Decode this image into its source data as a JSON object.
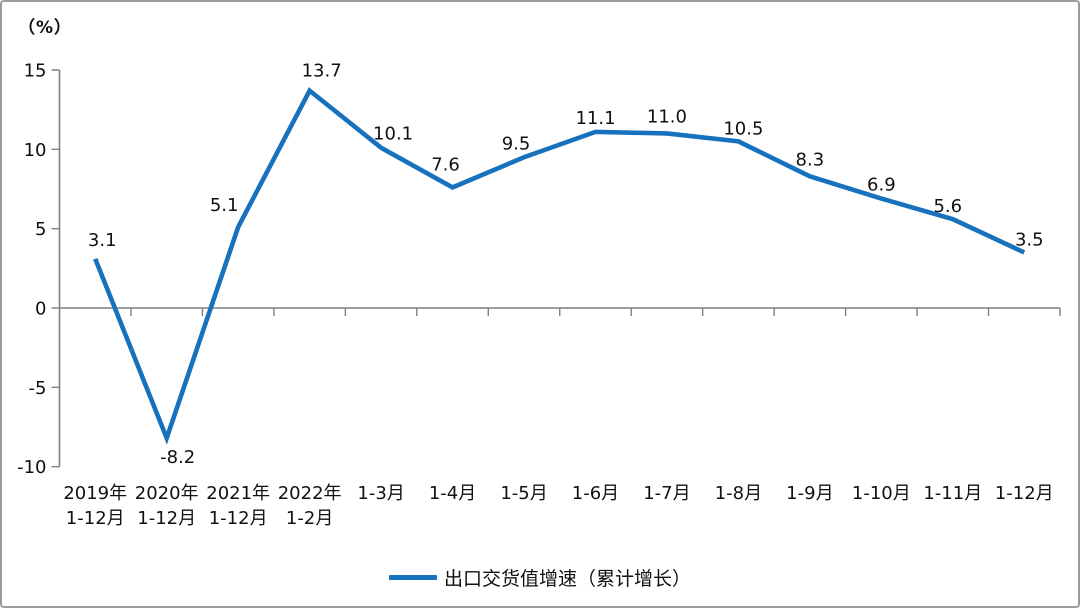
{
  "chart_data": {
    "type": "line",
    "unit_label": "（%）",
    "legend": "出口交货值增速（累计增长）",
    "categories": [
      [
        "2019年",
        "1-12月"
      ],
      [
        "2020年",
        "1-12月"
      ],
      [
        "2021年",
        "1-12月"
      ],
      [
        "2022年",
        "1-2月"
      ],
      [
        "1-3月"
      ],
      [
        "1-4月"
      ],
      [
        "1-5月"
      ],
      [
        "1-6月"
      ],
      [
        "1-7月"
      ],
      [
        "1-8月"
      ],
      [
        "1-9月"
      ],
      [
        "1-10月"
      ],
      [
        "1-11月"
      ],
      [
        "1-12月"
      ]
    ],
    "values": [
      3.1,
      -8.2,
      5.1,
      13.7,
      10.1,
      7.6,
      9.5,
      11.1,
      11.0,
      10.5,
      8.3,
      6.9,
      5.6,
      3.5
    ],
    "value_labels": [
      "3.1",
      "-8.2",
      "5.1",
      "13.7",
      "10.1",
      "7.6",
      "9.5",
      "11.1",
      "11.0",
      "10.5",
      "8.3",
      "6.9",
      "5.6",
      "3.5"
    ],
    "y_ticks": [
      15,
      10,
      5,
      0,
      -5,
      -10
    ],
    "ylim": [
      -10,
      15
    ],
    "grid": "zero-line-only",
    "legend_position": "bottom-center",
    "colors": {
      "line": "#1772be",
      "axis": "#7f7f7f",
      "text": "#111111"
    }
  }
}
